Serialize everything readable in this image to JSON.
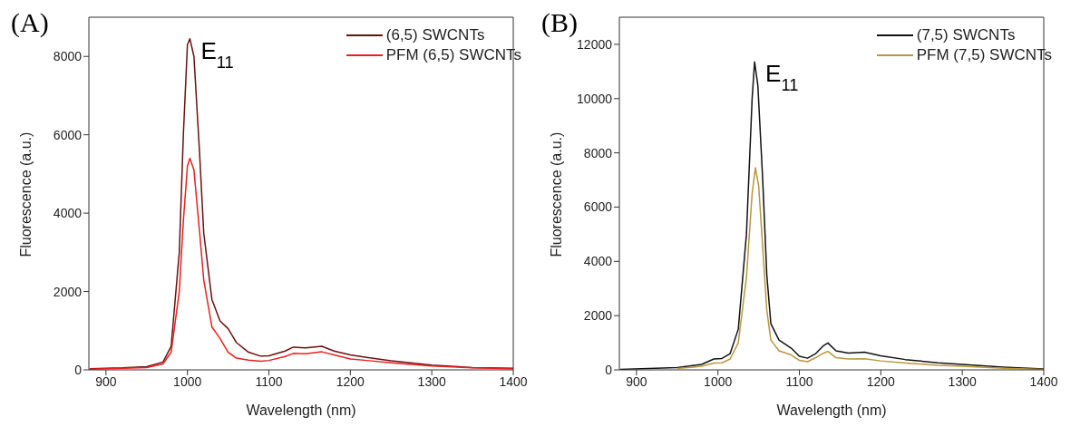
{
  "chart_data": [
    {
      "type": "line",
      "xlabel": "Wavelength (nm)",
      "ylabel": "Fluorescence (a.u.)",
      "xlim": [
        879,
        1400
      ],
      "xticks": [
        900,
        1000,
        1100,
        1200,
        1300,
        1400
      ],
      "ylim": [
        0,
        9000
      ],
      "yticks": [
        0,
        2000,
        4000,
        6000,
        8000
      ],
      "grid": false,
      "legend": "top right",
      "marker": "none",
      "line_style": "solid",
      "annotations": [
        "(A)",
        {
          "text": "E$_{11}$",
          "x": 1003,
          "y": 8450
        }
      ],
      "series": [
        {
          "name": "(6,5) SWCNTs",
          "color": "#6b1010",
          "x": [
            880,
            920,
            950,
            970,
            980,
            990,
            995,
            1000,
            1003,
            1008,
            1015,
            1020,
            1030,
            1040,
            1050,
            1060,
            1075,
            1090,
            1100,
            1120,
            1130,
            1145,
            1165,
            1180,
            1200,
            1220,
            1250,
            1300,
            1350,
            1400
          ],
          "values": [
            30,
            50,
            80,
            200,
            600,
            3000,
            6000,
            8300,
            8450,
            8000,
            5500,
            3500,
            1800,
            1250,
            1050,
            700,
            450,
            350,
            360,
            480,
            580,
            560,
            600,
            480,
            380,
            320,
            230,
            120,
            60,
            40
          ]
        },
        {
          "name": "PFM (6,5) SWCNTs",
          "color": "#e8201f",
          "x": [
            880,
            920,
            950,
            970,
            980,
            990,
            995,
            1000,
            1003,
            1008,
            1015,
            1020,
            1030,
            1040,
            1050,
            1060,
            1075,
            1090,
            1100,
            1120,
            1130,
            1145,
            1165,
            1180,
            1200,
            1220,
            1250,
            1300,
            1350,
            1400
          ],
          "values": [
            20,
            40,
            60,
            150,
            450,
            2000,
            3800,
            5200,
            5400,
            5100,
            3500,
            2300,
            1100,
            800,
            450,
            300,
            250,
            220,
            240,
            340,
            420,
            410,
            460,
            380,
            280,
            240,
            180,
            100,
            50,
            30
          ]
        }
      ]
    },
    {
      "type": "line",
      "xlabel": "Wavelength (nm)",
      "ylabel": "Fluorescence (a.u.)",
      "xlim": [
        879,
        1400
      ],
      "xticks": [
        900,
        1000,
        1100,
        1200,
        1300,
        1400
      ],
      "ylim": [
        0,
        13000
      ],
      "yticks": [
        0,
        2000,
        4000,
        6000,
        8000,
        10000,
        12000
      ],
      "grid": false,
      "legend": "top right",
      "marker": "none",
      "line_style": "solid",
      "annotations": [
        "(B)",
        {
          "text": "E$_{11}$",
          "x": 1045,
          "y": 11350
        }
      ],
      "series": [
        {
          "name": "(7,5) SWCNTs",
          "color": "#111111",
          "x": [
            880,
            950,
            980,
            995,
            1005,
            1015,
            1025,
            1035,
            1042,
            1045,
            1049,
            1055,
            1060,
            1065,
            1075,
            1090,
            1100,
            1110,
            1120,
            1130,
            1135,
            1145,
            1160,
            1180,
            1200,
            1230,
            1270,
            1300,
            1350,
            1400
          ],
          "values": [
            20,
            80,
            200,
            400,
            420,
            600,
            1500,
            5000,
            10000,
            11350,
            10500,
            7000,
            3500,
            1700,
            1100,
            800,
            500,
            430,
            600,
            900,
            990,
            700,
            620,
            650,
            520,
            380,
            260,
            200,
            100,
            30
          ]
        },
        {
          "name": "PFM (7,5) SWCNTs",
          "color": "#b8963a",
          "x": [
            950,
            980,
            995,
            1005,
            1015,
            1025,
            1035,
            1042,
            1046,
            1050,
            1055,
            1060,
            1065,
            1075,
            1090,
            1100,
            1110,
            1120,
            1130,
            1135,
            1145,
            1160,
            1180,
            1200,
            1230,
            1270,
            1300,
            1350,
            1400
          ],
          "values": [
            50,
            130,
            250,
            260,
            400,
            1000,
            3400,
            6500,
            7450,
            6800,
            4500,
            2200,
            1100,
            700,
            550,
            350,
            300,
            450,
            620,
            680,
            450,
            400,
            410,
            330,
            250,
            170,
            130,
            60,
            20
          ]
        }
      ]
    }
  ]
}
